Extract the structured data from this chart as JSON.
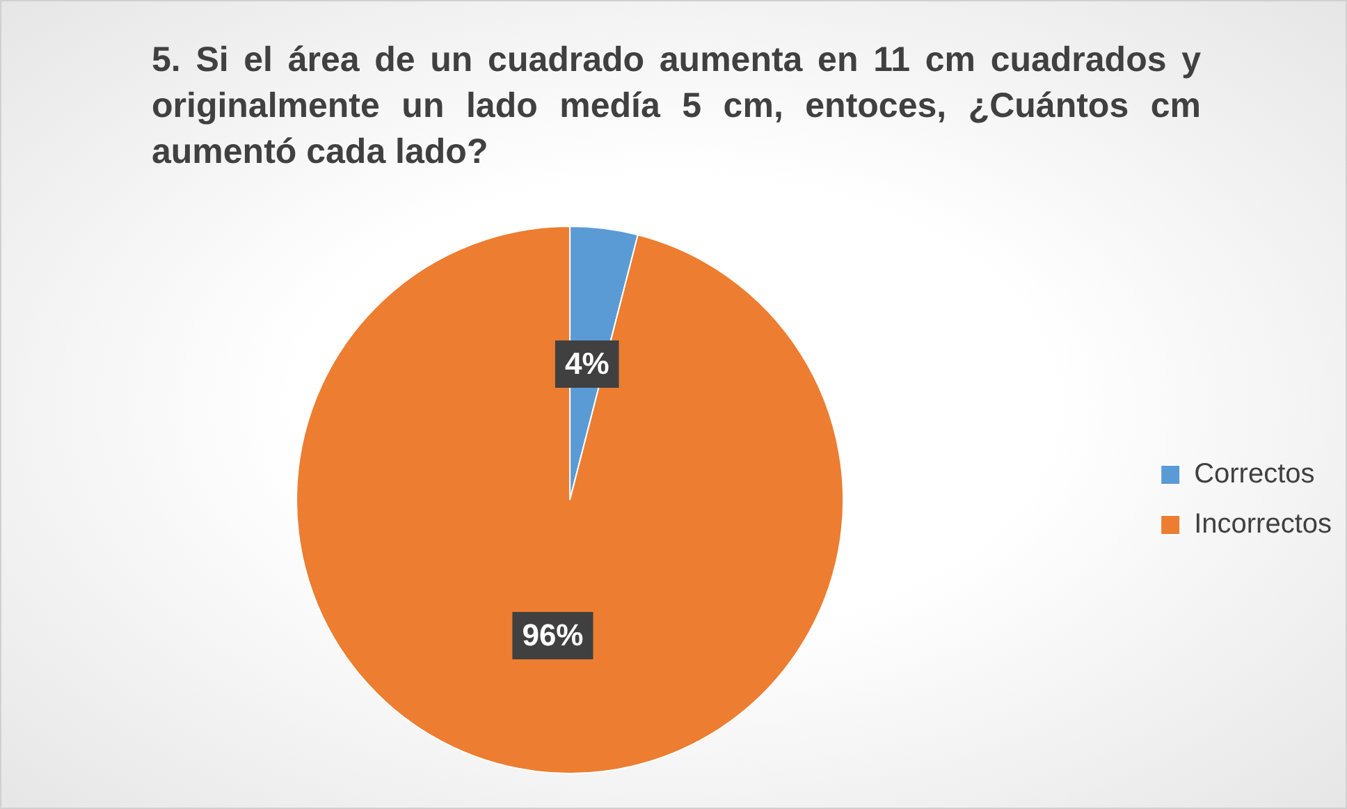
{
  "chart_data": {
    "type": "pie",
    "title": "5. Si el área de un cuadrado aumenta en 11 cm cuadrados y originalmente un lado medía 5 cm, entoces, ¿Cuántos cm aumentó cada lado?",
    "categories": [
      "Correctos",
      "Incorrectos"
    ],
    "values": [
      4,
      96
    ],
    "colors": [
      "#5b9bd5",
      "#ed7d31"
    ],
    "value_labels": [
      "4%",
      "96%"
    ],
    "legend": "right"
  }
}
